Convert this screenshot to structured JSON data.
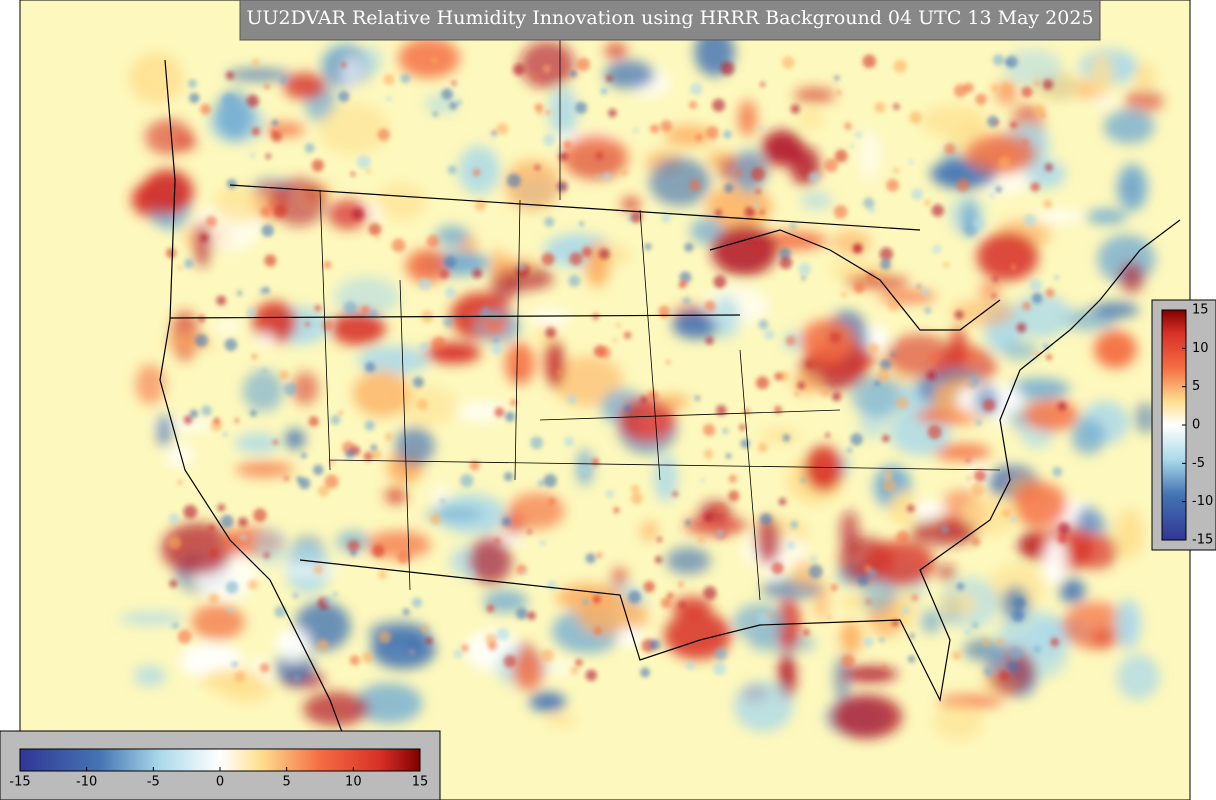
{
  "title": "UU2DVAR Relative Humidity Innovation using HRRR Background 04 UTC 13 May 2025",
  "colorbars": [
    {
      "orientation": "horizontal",
      "range": [
        -15,
        15
      ],
      "ticks": [
        -15,
        -10,
        -5,
        0,
        5,
        10,
        15
      ]
    },
    {
      "orientation": "vertical",
      "range": [
        -15,
        15
      ],
      "ticks": [
        -15,
        -10,
        -5,
        0,
        5,
        10,
        15
      ]
    }
  ]
}
